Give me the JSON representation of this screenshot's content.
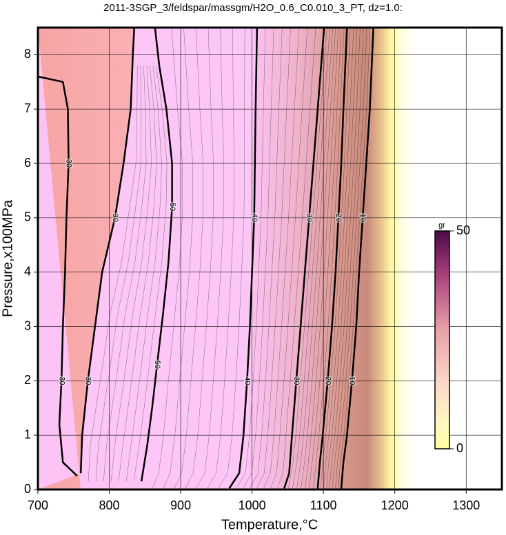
{
  "chart_data": {
    "type": "contour",
    "title": "2011-3SGP_3/feldspar/massgm/H2O_0.6_C0.010_3_PT, dz=1.0:",
    "x_label": "Temperature,°C",
    "y_label": "Pressure,x100MPa",
    "xlim": [
      700,
      1350
    ],
    "xticks": [
      700,
      800,
      900,
      1000,
      1100,
      1200,
      1300
    ],
    "ylim": [
      0,
      8.5
    ],
    "yticks": [
      0,
      1,
      2,
      3,
      4,
      5,
      6,
      7,
      8
    ],
    "grid": true,
    "contours": [
      {
        "level": 10,
        "x": [
          1125,
          1128,
          1133,
          1140,
          1146,
          1150,
          1155,
          1160,
          1165,
          1170
        ],
        "y": [
          0.02,
          0.5,
          1,
          2,
          3,
          4,
          5,
          6,
          7,
          8.5
        ]
      },
      {
        "level": 20,
        "x": [
          1092,
          1095,
          1099,
          1106,
          1112,
          1117,
          1121,
          1125,
          1128,
          1133
        ],
        "y": [
          0.02,
          0.5,
          1,
          2,
          3,
          4,
          5,
          6,
          7,
          8.5
        ]
      },
      {
        "level": 30,
        "x": [
          1045,
          1052,
          1056,
          1062,
          1068,
          1074,
          1080,
          1086,
          1092,
          1101
        ],
        "y": [
          0.02,
          0.3,
          1,
          2,
          3,
          4,
          5,
          6,
          7,
          8.5
        ]
      },
      {
        "level": 40,
        "x": [
          968,
          982,
          988,
          993,
          997,
          1000,
          1003,
          1004,
          1005,
          1007
        ],
        "y": [
          0.02,
          0.3,
          1,
          2,
          3,
          4,
          5,
          6,
          7,
          8.5
        ]
      },
      {
        "level": 50,
        "x": [
          845,
          853,
          860,
          867,
          875,
          883,
          888,
          888,
          880,
          870,
          864
        ],
        "y": [
          0.15,
          0.8,
          1.5,
          2.3,
          3.2,
          4.2,
          5.2,
          6,
          7,
          7.8,
          8.5
        ]
      },
      {
        "level": 30,
        "x": [
          760,
          762,
          770,
          780,
          790,
          808,
          820,
          830,
          833,
          835
        ],
        "y": [
          0.3,
          1,
          2,
          3,
          4,
          5,
          6,
          7,
          8,
          8.5
        ]
      },
      {
        "level": 30,
        "x": [
          700,
          735,
          742,
          743,
          740,
          738,
          735,
          733,
          730,
          735,
          755
        ],
        "y": [
          7.6,
          7.5,
          7,
          6,
          5,
          4,
          3,
          2,
          1.2,
          0.5,
          0.25
        ]
      }
    ],
    "colorbar": {
      "label": "gr",
      "lim": [
        0,
        50
      ],
      "ticks": [
        0,
        50
      ]
    }
  }
}
